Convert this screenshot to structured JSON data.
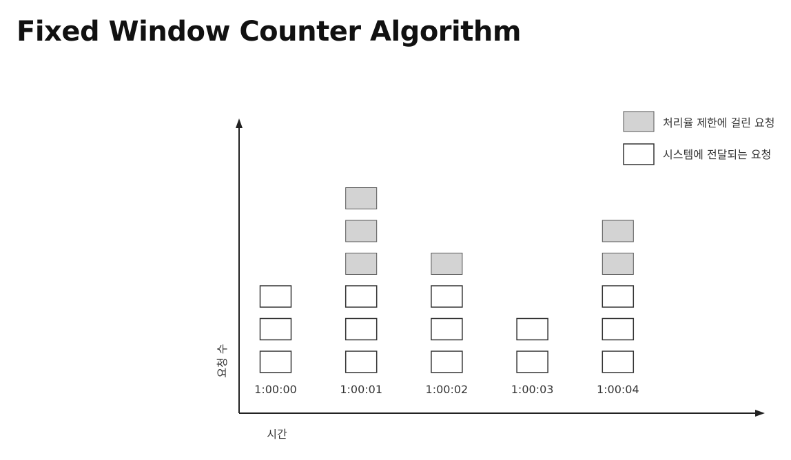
{
  "title": "Fixed Window Counter Algorithm",
  "colors": {
    "limited_fill": "#d3d3d3",
    "passed_fill": "#ffffff",
    "box_stroke": "#333333",
    "axis": "#222222"
  },
  "legend": {
    "limited": "처리율 제한에 걸린 요청",
    "passed": "시스템에 전달되는 요청"
  },
  "axes": {
    "x_label": "시간",
    "y_label": "요청 수"
  },
  "chart_data": {
    "type": "bar",
    "categories": [
      "1:00:00",
      "1:00:01",
      "1:00:02",
      "1:00:03",
      "1:00:04"
    ],
    "series": [
      {
        "name": "시스템에 전달되는 요청",
        "values": [
          3,
          3,
          3,
          2,
          3
        ]
      },
      {
        "name": "처리율 제한에 걸린 요청",
        "values": [
          0,
          3,
          1,
          0,
          2
        ]
      }
    ],
    "xlabel": "시간",
    "ylabel": "요청 수"
  }
}
